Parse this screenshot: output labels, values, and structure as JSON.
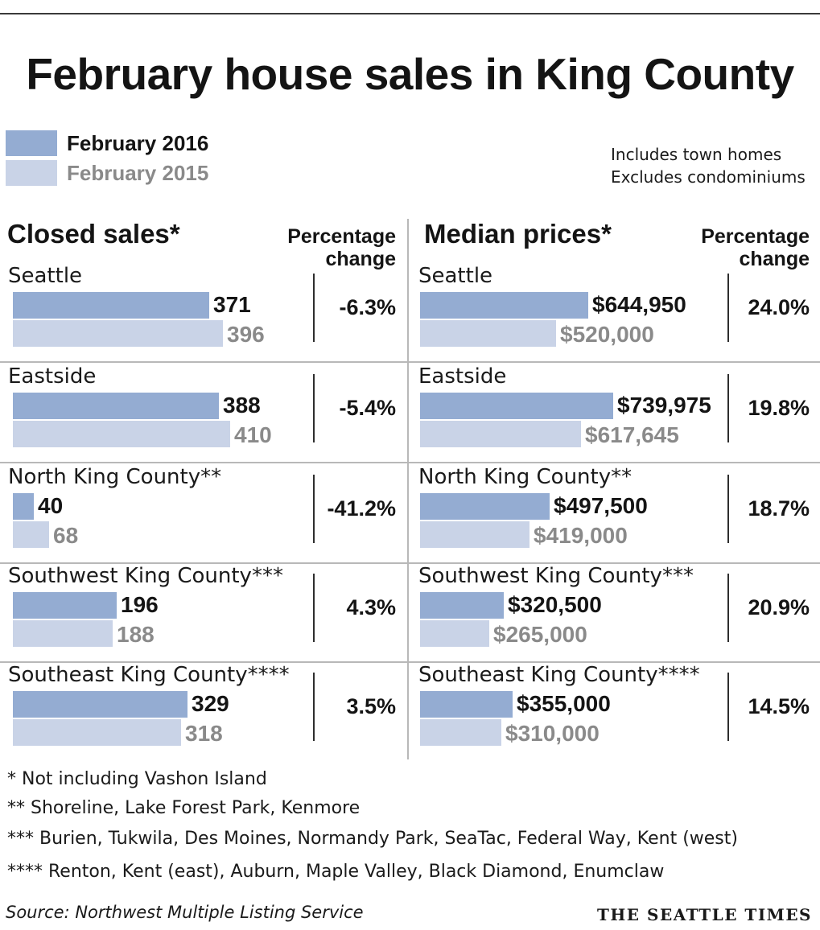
{
  "title": "February house sales in King County",
  "legend": {
    "current": "February 2016",
    "previous": "February 2015"
  },
  "notes": [
    "Includes town homes",
    "Excludes condominiums"
  ],
  "colors": {
    "current": "#94acd2",
    "previous": "#c9d3e7",
    "text": "#141414",
    "muted": "#8a8a8a"
  },
  "chart_data": [
    {
      "type": "bar",
      "title": "Closed sales*",
      "pct_header": [
        "Percentage",
        "change"
      ],
      "categories": [
        "Seattle",
        "Eastside",
        "North King County**",
        "Southwest King County***",
        "Southeast King County****"
      ],
      "series": [
        {
          "name": "February 2016",
          "values": [
            371,
            388,
            40,
            196,
            329
          ]
        },
        {
          "name": "February 2015",
          "values": [
            396,
            410,
            68,
            188,
            318
          ]
        }
      ],
      "labels_2016": [
        "371",
        "388",
        "40",
        "196",
        "329"
      ],
      "labels_2015": [
        "396",
        "410",
        "68",
        "188",
        "318"
      ],
      "pct_change": [
        "-6.3%",
        "-5.4%",
        "-41.2%",
        "4.3%",
        "3.5%"
      ],
      "scale_max": 410
    },
    {
      "type": "bar",
      "title": "Median prices*",
      "pct_header": [
        "Percentage",
        "change"
      ],
      "categories": [
        "Seattle",
        "Eastside",
        "North King County**",
        "Southwest King County***",
        "Southeast King County****"
      ],
      "series": [
        {
          "name": "February 2016",
          "values": [
            644950,
            739975,
            497500,
            320500,
            355000
          ]
        },
        {
          "name": "February 2015",
          "values": [
            520000,
            617645,
            419000,
            265000,
            310000
          ]
        }
      ],
      "labels_2016": [
        "$644,950",
        "$739,975",
        "$497,500",
        "$320,500",
        "$355,000"
      ],
      "labels_2015": [
        "$520,000",
        "$617,645",
        "$419,000",
        "$265,000",
        "$310,000"
      ],
      "pct_change": [
        "24.0%",
        "19.8%",
        "18.7%",
        "20.9%",
        "14.5%"
      ],
      "scale_max": 739975
    }
  ],
  "footnotes": [
    "* Not including Vashon Island",
    "**  Shoreline, Lake Forest Park, Kenmore",
    "*** Burien, Tukwila, Des Moines, Normandy Park, SeaTac, Federal Way, Kent (west)",
    "**** Renton, Kent (east), Auburn, Maple Valley, Black Diamond, Enumclaw"
  ],
  "source": "Source: Northwest Multiple Listing Service",
  "brand": "THE SEATTLE TIMES"
}
